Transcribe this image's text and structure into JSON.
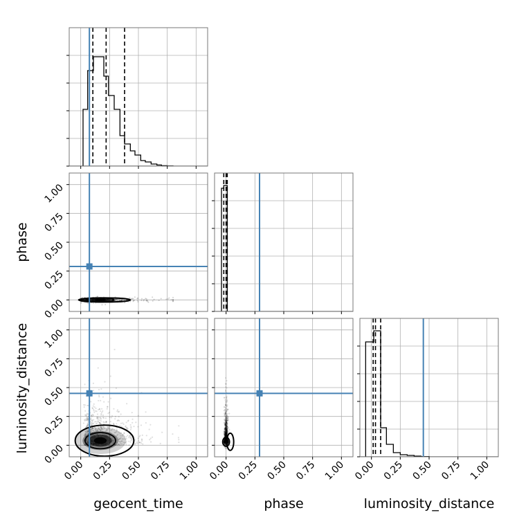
{
  "chart_data": {
    "type": "corner",
    "parameters": [
      "geocent_time",
      "phase",
      "luminosity_distance"
    ],
    "axis_labels": {
      "x": [
        "geocent_time",
        "phase",
        "luminosity_distance"
      ],
      "y": [
        "phase",
        "luminosity_distance"
      ]
    },
    "xlim": [
      -0.1,
      1.1
    ],
    "ylim": [
      -0.1,
      1.1
    ],
    "ticks": [
      0.0,
      0.25,
      0.5,
      0.75,
      1.0
    ],
    "tick_labels": [
      "0.00",
      "0.25",
      "0.50",
      "0.75",
      "1.00"
    ],
    "grid": true,
    "truths": {
      "geocent_time": 0.075,
      "phase": 0.29,
      "luminosity_distance": 0.45
    },
    "truth_color": "#4682b4",
    "marginals": [
      {
        "parameter": "geocent_time",
        "bin_edges": [
          0.02,
          0.06,
          0.11,
          0.15,
          0.2,
          0.24,
          0.29,
          0.34,
          0.38,
          0.43,
          0.47,
          0.52,
          0.56,
          0.61,
          0.66,
          0.7,
          0.75,
          0.8
        ],
        "counts": [
          0.41,
          0.69,
          0.79,
          0.79,
          0.65,
          0.51,
          0.41,
          0.22,
          0.16,
          0.11,
          0.08,
          0.04,
          0.03,
          0.015,
          0.008,
          0.003,
          0.001
        ],
        "quantiles": [
          0.105,
          0.22,
          0.38
        ]
      },
      {
        "parameter": "phase",
        "bin_edges": [
          -0.04,
          -0.02,
          0.01,
          0.02
        ],
        "counts": [
          0.89,
          0.91,
          0.0
        ],
        "quantiles": [
          -0.02,
          0.0,
          0.01
        ]
      },
      {
        "parameter": "luminosity_distance",
        "bin_edges": [
          -0.05,
          0.02,
          0.08,
          0.13,
          0.19,
          0.25,
          0.31,
          0.37,
          0.43,
          0.5
        ],
        "counts": [
          0.83,
          0.91,
          0.21,
          0.09,
          0.03,
          0.015,
          0.01,
          0.005,
          0.002
        ],
        "quantiles": [
          0.015,
          0.035,
          0.08
        ]
      }
    ],
    "joint_densities": [
      {
        "x": "geocent_time",
        "y": "phase",
        "center": [
          0.17,
          0.0
        ],
        "spread": [
          0.15,
          0.01
        ],
        "tail_to": 0.8
      },
      {
        "x": "geocent_time",
        "y": "luminosity_distance",
        "center": [
          0.17,
          0.04
        ],
        "spread": [
          0.17,
          0.09
        ],
        "scatter_to": [
          0.85,
          0.83
        ]
      },
      {
        "x": "phase",
        "y": "luminosity_distance",
        "center": [
          0.0,
          0.03
        ],
        "spread": [
          0.012,
          0.05
        ],
        "scatter_to": [
          0.0,
          0.83
        ]
      }
    ]
  }
}
